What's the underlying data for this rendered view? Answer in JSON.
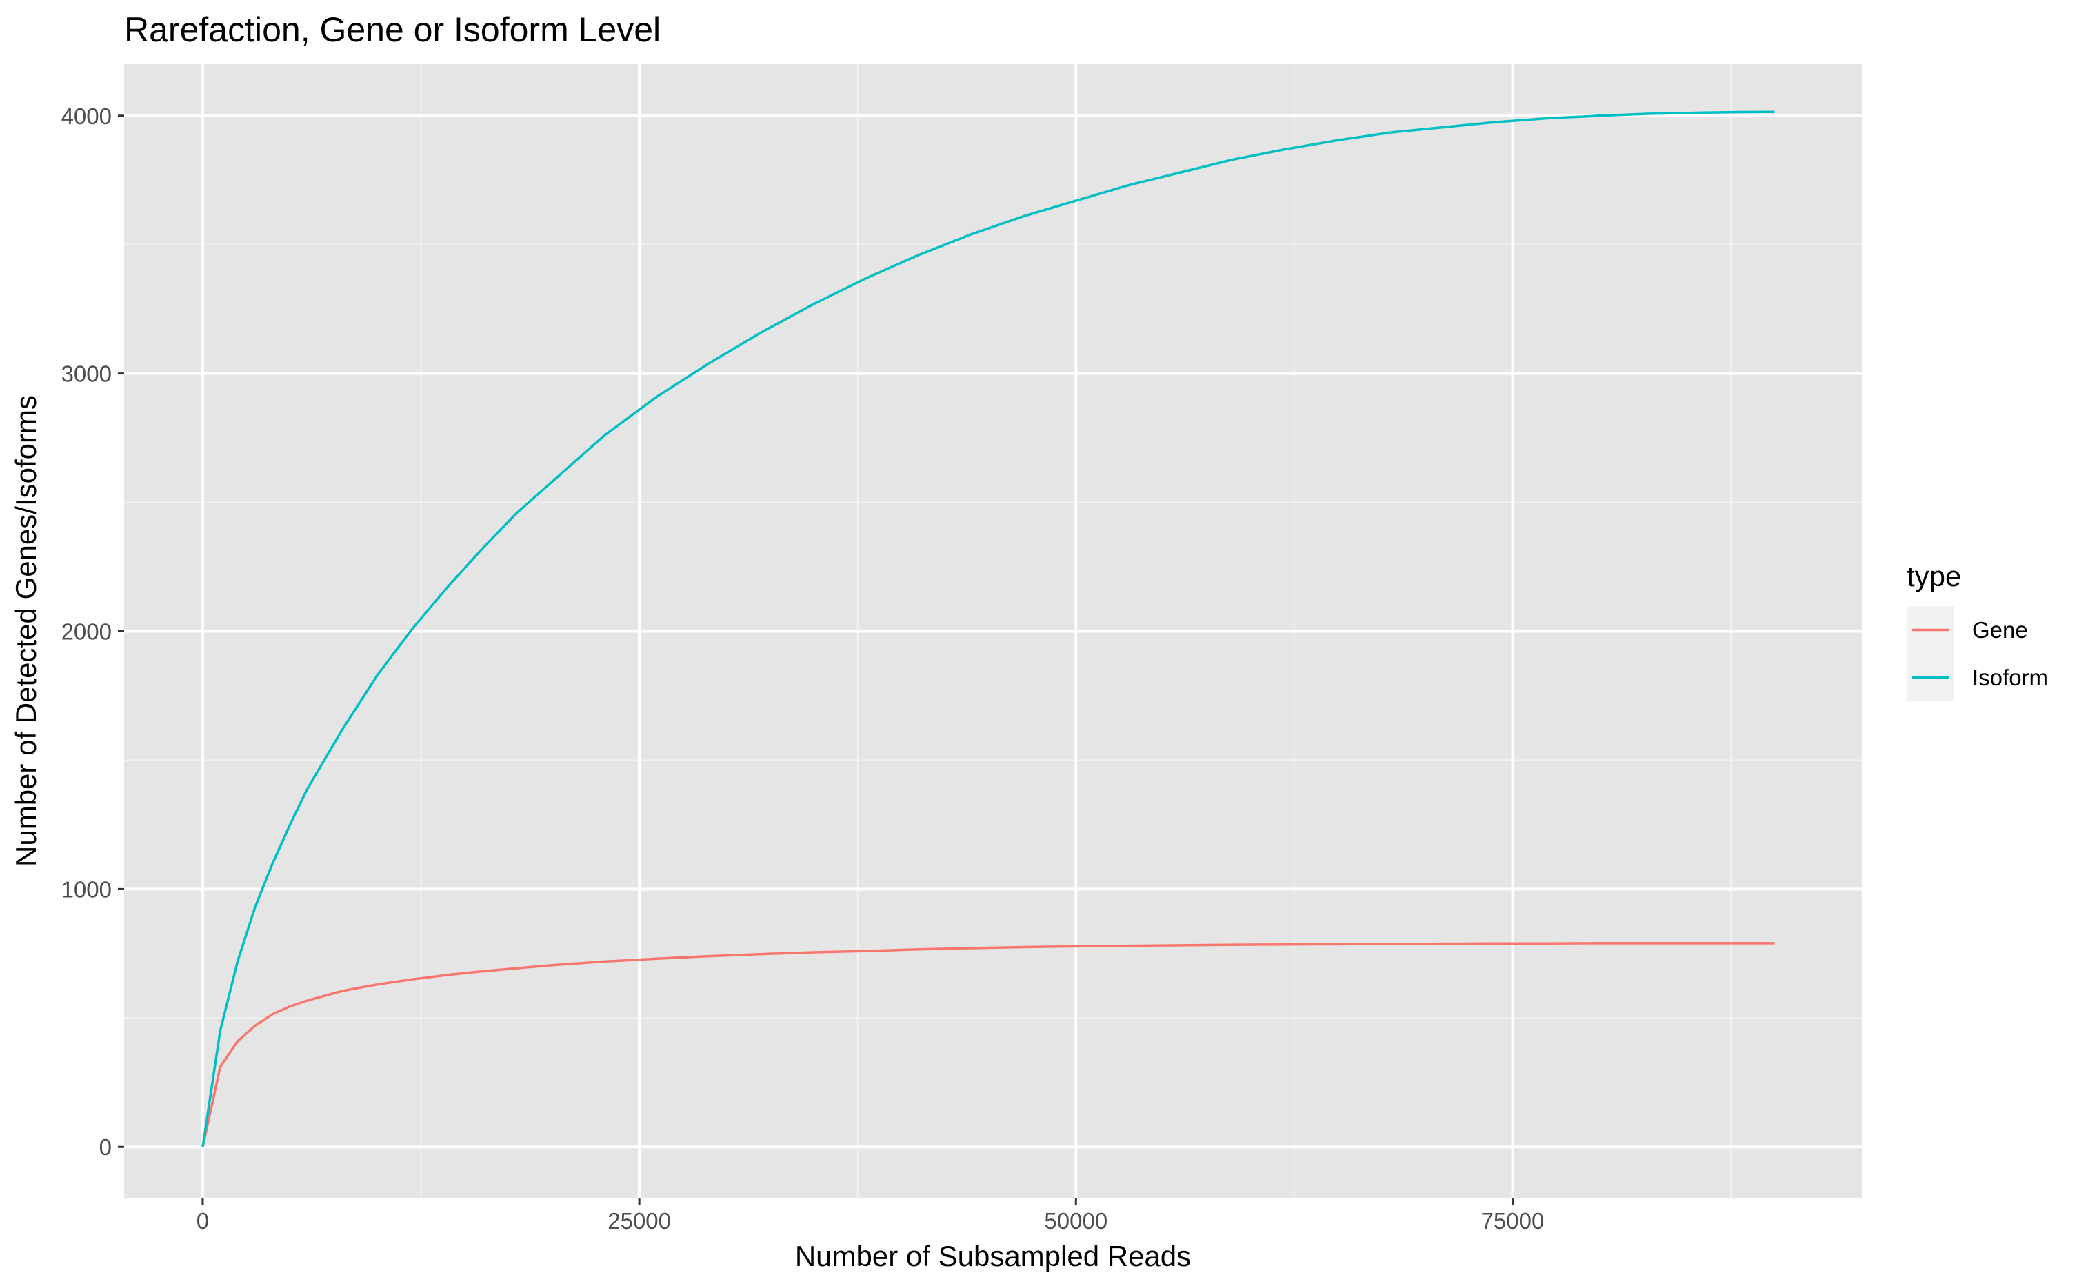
{
  "chart_data": {
    "type": "line",
    "title": "Rarefaction, Gene or Isoform Level",
    "xlabel": "Number of Subsampled Reads",
    "ylabel": "Number of Detected Genes/Isoforms",
    "xlim": [
      -4500,
      95000
    ],
    "ylim": [
      -200,
      4200
    ],
    "xticks": [
      0,
      25000,
      50000,
      75000
    ],
    "xtick_labels": [
      "0",
      "25000",
      "50000",
      "75000"
    ],
    "yticks": [
      0,
      1000,
      2000,
      3000,
      4000
    ],
    "ytick_labels": [
      "0",
      "1000",
      "2000",
      "3000",
      "4000"
    ],
    "grid": true,
    "legend": {
      "title": "type",
      "position": "right"
    },
    "x": [
      0,
      1000,
      2000,
      3000,
      4000,
      5000,
      6000,
      8000,
      10000,
      12000,
      14000,
      16000,
      18000,
      20000,
      23000,
      26000,
      29000,
      32000,
      35000,
      38000,
      41000,
      44000,
      47000,
      50000,
      53000,
      56000,
      59000,
      62000,
      65000,
      68000,
      71000,
      74000,
      77000,
      80000,
      83000,
      86000,
      88000,
      90000
    ],
    "series": [
      {
        "name": "Gene",
        "color": "#F8766D",
        "values": [
          0,
          310,
          410,
          470,
          515,
          545,
          568,
          605,
          630,
          650,
          667,
          681,
          693,
          705,
          719,
          730,
          740,
          748,
          755,
          760,
          766,
          771,
          775,
          778,
          780,
          782,
          784,
          785,
          786,
          787,
          788,
          789,
          789,
          790,
          790,
          790,
          790,
          790
        ]
      },
      {
        "name": "Isoform",
        "color": "#00BFC4",
        "values": [
          0,
          450,
          720,
          930,
          1100,
          1250,
          1390,
          1620,
          1830,
          2010,
          2170,
          2320,
          2460,
          2580,
          2760,
          2910,
          3040,
          3160,
          3270,
          3370,
          3460,
          3540,
          3610,
          3670,
          3730,
          3780,
          3830,
          3870,
          3905,
          3935,
          3955,
          3975,
          3990,
          4000,
          4008,
          4012,
          4014,
          4015
        ]
      }
    ]
  }
}
